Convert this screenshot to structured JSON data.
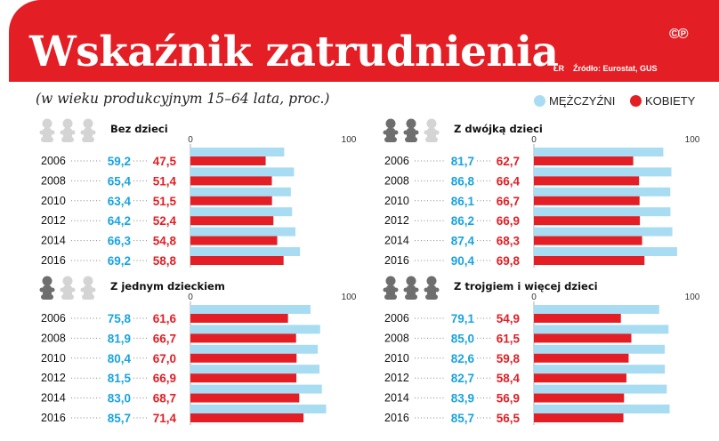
{
  "header": {
    "title": "Wskaźnik zatrudnienia",
    "logo": "©℗",
    "author": "ŁR",
    "source": "Źródło: Eurostat, GUS"
  },
  "subtitle": "(w wieku produkcyjnym 15–64 lata, proc.)",
  "legend": {
    "men": {
      "label": "MĘŻCZYŹNI",
      "color": "#a8dcf3"
    },
    "women": {
      "label": "KOBIETY",
      "color": "#e31e24"
    }
  },
  "colors": {
    "men_text": "#1aa3df",
    "women_text": "#e31e24",
    "icon_active": "#6e6e6e",
    "icon_inactive": "#d4d4d4"
  },
  "chart_data": [
    {
      "type": "bar",
      "title": "Bez dzieci",
      "icon": "children-icons-0-of-3",
      "categories": [
        "2006",
        "2008",
        "2010",
        "2012",
        "2014",
        "2016"
      ],
      "series": [
        {
          "name": "MĘŻCZYŹNI",
          "values": [
            59.2,
            65.4,
            63.4,
            64.2,
            66.3,
            69.2
          ]
        },
        {
          "name": "KOBIETY",
          "values": [
            47.5,
            51.4,
            51.5,
            52.4,
            54.8,
            58.8
          ]
        }
      ],
      "labels": {
        "men": [
          "59,2",
          "65,4",
          "63,4",
          "64,2",
          "66,3",
          "69,2"
        ],
        "women": [
          "47,5",
          "51,4",
          "51,5",
          "52,4",
          "54,8",
          "58,8"
        ]
      },
      "ticks": [
        "0",
        "100"
      ],
      "xlim": [
        0,
        100
      ],
      "active_icons": 0
    },
    {
      "type": "bar",
      "title": "Z dwójką dzieci",
      "icon": "children-icons-2-of-3",
      "categories": [
        "2006",
        "2008",
        "2010",
        "2012",
        "2014",
        "2016"
      ],
      "series": [
        {
          "name": "MĘŻCZYŹNI",
          "values": [
            81.7,
            86.8,
            86.1,
            86.2,
            87.4,
            90.4
          ]
        },
        {
          "name": "KOBIETY",
          "values": [
            62.7,
            66.4,
            66.7,
            66.9,
            68.3,
            69.8
          ]
        }
      ],
      "labels": {
        "men": [
          "81,7",
          "86,8",
          "86,1",
          "86,2",
          "87,4",
          "90,4"
        ],
        "women": [
          "62,7",
          "66,4",
          "66,7",
          "66,9",
          "68,3",
          "69,8"
        ]
      },
      "ticks": [
        "0",
        "100"
      ],
      "xlim": [
        0,
        100
      ],
      "active_icons": 2
    },
    {
      "type": "bar",
      "title": "Z jednym dzieckiem",
      "icon": "children-icons-1-of-3",
      "categories": [
        "2006",
        "2008",
        "2010",
        "2012",
        "2014",
        "2016"
      ],
      "series": [
        {
          "name": "MĘŻCZYŹNI",
          "values": [
            75.8,
            81.9,
            80.4,
            81.5,
            83.0,
            85.7
          ]
        },
        {
          "name": "KOBIETY",
          "values": [
            61.6,
            66.7,
            67.0,
            66.9,
            68.7,
            71.4
          ]
        }
      ],
      "labels": {
        "men": [
          "75,8",
          "81,9",
          "80,4",
          "81,5",
          "83,0",
          "85,7"
        ],
        "women": [
          "61,6",
          "66,7",
          "67,0",
          "66,9",
          "68,7",
          "71,4"
        ]
      },
      "ticks": [
        "0",
        "100"
      ],
      "xlim": [
        0,
        100
      ],
      "active_icons": 1
    },
    {
      "type": "bar",
      "title": "Z trojgiem i więcej dzieci",
      "icon": "children-icons-3-of-3",
      "categories": [
        "2006",
        "2008",
        "2010",
        "2012",
        "2014",
        "2016"
      ],
      "series": [
        {
          "name": "MĘŻCZYŹNI",
          "values": [
            79.1,
            85.0,
            82.6,
            82.7,
            83.9,
            85.7
          ]
        },
        {
          "name": "KOBIETY",
          "values": [
            54.9,
            61.5,
            59.8,
            58.4,
            56.9,
            56.5
          ]
        }
      ],
      "labels": {
        "men": [
          "79,1",
          "85,0",
          "82,6",
          "82,7",
          "83,9",
          "85,7"
        ],
        "women": [
          "54,9",
          "61,5",
          "59,8",
          "58,4",
          "56,9",
          "56,5"
        ]
      },
      "ticks": [
        "0",
        "100"
      ],
      "xlim": [
        0,
        100
      ],
      "active_icons": 3
    }
  ]
}
